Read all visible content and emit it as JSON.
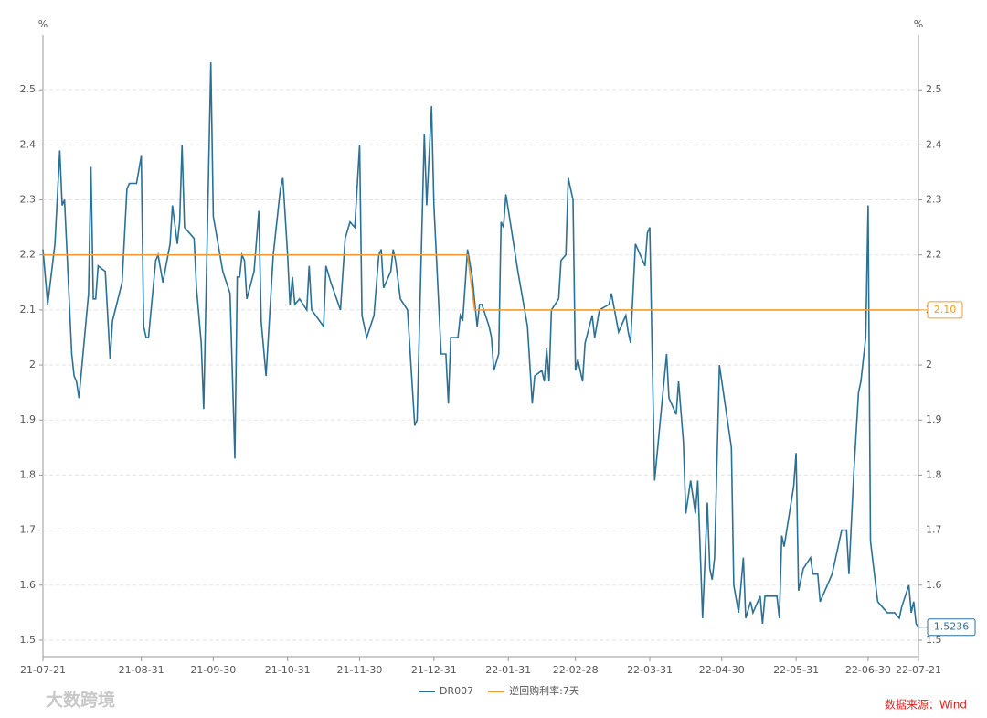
{
  "chart_data": {
    "type": "line",
    "y_unit": "%",
    "y2_unit": "%",
    "xlim": [
      "21-07-21",
      "22-07-21"
    ],
    "xticks": [
      "21-07-21",
      "21-08-31",
      "21-09-30",
      "21-10-31",
      "21-11-30",
      "21-12-31",
      "22-01-31",
      "22-02-28",
      "22-03-31",
      "22-04-30",
      "22-05-31",
      "22-06-30",
      "22-07-21"
    ],
    "ylim": [
      1.47,
      2.6
    ],
    "yticks": [
      1.5,
      1.6,
      1.7,
      1.8,
      1.9,
      2,
      2.1,
      2.2,
      2.3,
      2.4,
      2.5
    ],
    "y2lim": [
      1.47,
      2.6
    ],
    "y2ticks": [
      1.5,
      1.6,
      1.7,
      1.8,
      1.9,
      2,
      2.1,
      2.2,
      2.3,
      2.4,
      2.5
    ],
    "grid": true,
    "legend": "bottom",
    "source": "数据来源：Wind",
    "watermark": "大数跨境",
    "series": [
      {
        "name": "DR007",
        "color": "#2b7195",
        "x": [
          "21-07-21",
          "21-07-23",
          "21-07-26",
          "21-07-28",
          "21-07-29",
          "21-07-30",
          "21-08-02",
          "21-08-03",
          "21-08-04",
          "21-08-05",
          "21-08-09",
          "21-08-10",
          "21-08-11",
          "21-08-12",
          "21-08-13",
          "21-08-16",
          "21-08-18",
          "21-08-19",
          "21-08-23",
          "21-08-25",
          "21-08-26",
          "21-08-29",
          "21-08-31",
          "21-09-01",
          "21-09-02",
          "21-09-03",
          "21-09-06",
          "21-09-07",
          "21-09-09",
          "21-09-12",
          "21-09-13",
          "21-09-15",
          "21-09-16",
          "21-09-17",
          "21-09-18",
          "21-09-22",
          "21-09-23",
          "21-09-25",
          "21-09-26",
          "21-09-29",
          "21-09-30",
          "21-10-04",
          "21-10-07",
          "21-10-09",
          "21-10-10",
          "21-10-11",
          "21-10-12",
          "21-10-13",
          "21-10-14",
          "21-10-17",
          "21-10-19",
          "21-10-20",
          "21-10-22",
          "21-10-25",
          "21-10-28",
          "21-10-29",
          "21-10-31",
          "21-11-01",
          "21-11-02",
          "21-11-03",
          "21-11-05",
          "21-11-08",
          "21-11-09",
          "21-11-10",
          "21-11-15",
          "21-11-16",
          "21-11-18",
          "21-11-22",
          "21-11-24",
          "21-11-26",
          "21-11-28",
          "21-11-30",
          "21-12-01",
          "21-12-03",
          "21-12-06",
          "21-12-08",
          "21-12-09",
          "21-12-10",
          "21-12-13",
          "21-12-14",
          "21-12-15",
          "21-12-17",
          "21-12-20",
          "21-12-23",
          "21-12-24",
          "21-12-27",
          "21-12-28",
          "21-12-30",
          "21-12-31",
          "22-01-03",
          "22-01-05",
          "22-01-06",
          "22-01-07",
          "22-01-10",
          "22-01-11",
          "22-01-12",
          "22-01-14",
          "22-01-16",
          "22-01-18",
          "22-01-19",
          "22-01-20",
          "22-01-23",
          "22-01-24",
          "22-01-25",
          "22-01-27",
          "22-01-28",
          "22-01-29",
          "22-01-30",
          "22-02-04",
          "22-02-08",
          "22-02-10",
          "22-02-11",
          "22-02-14",
          "22-02-15",
          "22-02-16",
          "22-02-17",
          "22-02-18",
          "22-02-21",
          "22-02-22",
          "22-02-24",
          "22-02-25",
          "22-02-27",
          "22-02-28",
          "22-03-01",
          "22-03-03",
          "22-03-04",
          "22-03-07",
          "22-03-08",
          "22-03-10",
          "22-03-14",
          "22-03-15",
          "22-03-18",
          "22-03-21",
          "22-03-22",
          "22-03-23",
          "22-03-25",
          "22-03-29",
          "22-03-30",
          "22-03-31",
          "22-04-02",
          "22-04-07",
          "22-04-08",
          "22-04-11",
          "22-04-12",
          "22-04-14",
          "22-04-15",
          "22-04-17",
          "22-04-19",
          "22-04-20",
          "22-04-22",
          "22-04-24",
          "22-04-25",
          "22-04-26",
          "22-04-27",
          "22-04-29",
          "22-05-04",
          "22-05-05",
          "22-05-07",
          "22-05-09",
          "22-05-10",
          "22-05-12",
          "22-05-13",
          "22-05-16",
          "22-05-17",
          "22-05-18",
          "22-05-23",
          "22-05-24",
          "22-05-25",
          "22-05-26",
          "22-05-30",
          "22-05-31",
          "22-06-01",
          "22-06-03",
          "22-06-06",
          "22-06-07",
          "22-06-09",
          "22-06-10",
          "22-06-13",
          "22-06-15",
          "22-06-17",
          "22-06-19",
          "22-06-21",
          "22-06-22",
          "22-06-24",
          "22-06-26",
          "22-06-27",
          "22-06-29",
          "22-06-30",
          "22-07-01",
          "22-07-04",
          "22-07-06",
          "22-07-08",
          "22-07-11",
          "22-07-13",
          "22-07-14",
          "22-07-17",
          "22-07-18",
          "22-07-19",
          "22-07-20",
          "22-07-21"
        ],
        "values": [
          2.21,
          2.11,
          2.22,
          2.39,
          2.29,
          2.3,
          2.02,
          1.98,
          1.97,
          1.94,
          2.13,
          2.36,
          2.12,
          2.12,
          2.18,
          2.17,
          2.01,
          2.08,
          2.15,
          2.32,
          2.33,
          2.33,
          2.38,
          2.07,
          2.05,
          2.05,
          2.19,
          2.2,
          2.15,
          2.22,
          2.29,
          2.22,
          2.26,
          2.4,
          2.25,
          2.23,
          2.14,
          2.04,
          1.92,
          2.55,
          2.27,
          2.17,
          2.13,
          1.83,
          2.16,
          2.16,
          2.2,
          2.19,
          2.12,
          2.17,
          2.28,
          2.08,
          1.98,
          2.2,
          2.32,
          2.34,
          2.2,
          2.11,
          2.16,
          2.11,
          2.12,
          2.1,
          2.18,
          2.1,
          2.07,
          2.18,
          2.15,
          2.1,
          2.23,
          2.26,
          2.25,
          2.4,
          2.09,
          2.05,
          2.09,
          2.2,
          2.21,
          2.14,
          2.17,
          2.21,
          2.19,
          2.12,
          2.1,
          1.89,
          1.9,
          2.42,
          2.29,
          2.47,
          2.29,
          2.02,
          2.02,
          1.93,
          2.05,
          2.05,
          2.09,
          2.08,
          2.21,
          2.16,
          2.07,
          2.11,
          2.11,
          2.07,
          2.05,
          1.99,
          2.02,
          2.26,
          2.25,
          2.31,
          2.17,
          2.07,
          1.93,
          1.98,
          1.99,
          1.97,
          2.03,
          1.97,
          2.1,
          2.12,
          2.19,
          2.2,
          2.34,
          2.3,
          1.99,
          2.01,
          1.97,
          2.04,
          2.09,
          2.05,
          2.1,
          2.11,
          2.13,
          2.06,
          2.09,
          2.06,
          2.04,
          2.22,
          2.18,
          2.24,
          2.25,
          1.79,
          2.02,
          1.94,
          1.91,
          1.97,
          1.86,
          1.73,
          1.79,
          1.73,
          1.79,
          1.54,
          1.75,
          1.63,
          1.61,
          1.65,
          2.0,
          1.85,
          1.6,
          1.55,
          1.65,
          1.54,
          1.57,
          1.55,
          1.58,
          1.53,
          1.58,
          1.58,
          1.54,
          1.69,
          1.67,
          1.78,
          1.84,
          1.59,
          1.63,
          1.65,
          1.62,
          1.62,
          1.57,
          1.6,
          1.62,
          1.66,
          1.7,
          1.7,
          1.62,
          1.8,
          1.95,
          1.97,
          2.05,
          2.29,
          1.68,
          1.57,
          1.56,
          1.55,
          1.55,
          1.54,
          1.56,
          1.6,
          1.55,
          1.57,
          1.53,
          1.5236
        ],
        "end_label": "1.5236"
      },
      {
        "name": "逆回购利率:7天",
        "color": "#f39c2b",
        "x": [
          "21-07-21",
          "22-01-14",
          "22-01-17",
          "22-07-21"
        ],
        "values": [
          2.2,
          2.2,
          2.1,
          2.1
        ],
        "end_label": "2.10"
      }
    ]
  }
}
